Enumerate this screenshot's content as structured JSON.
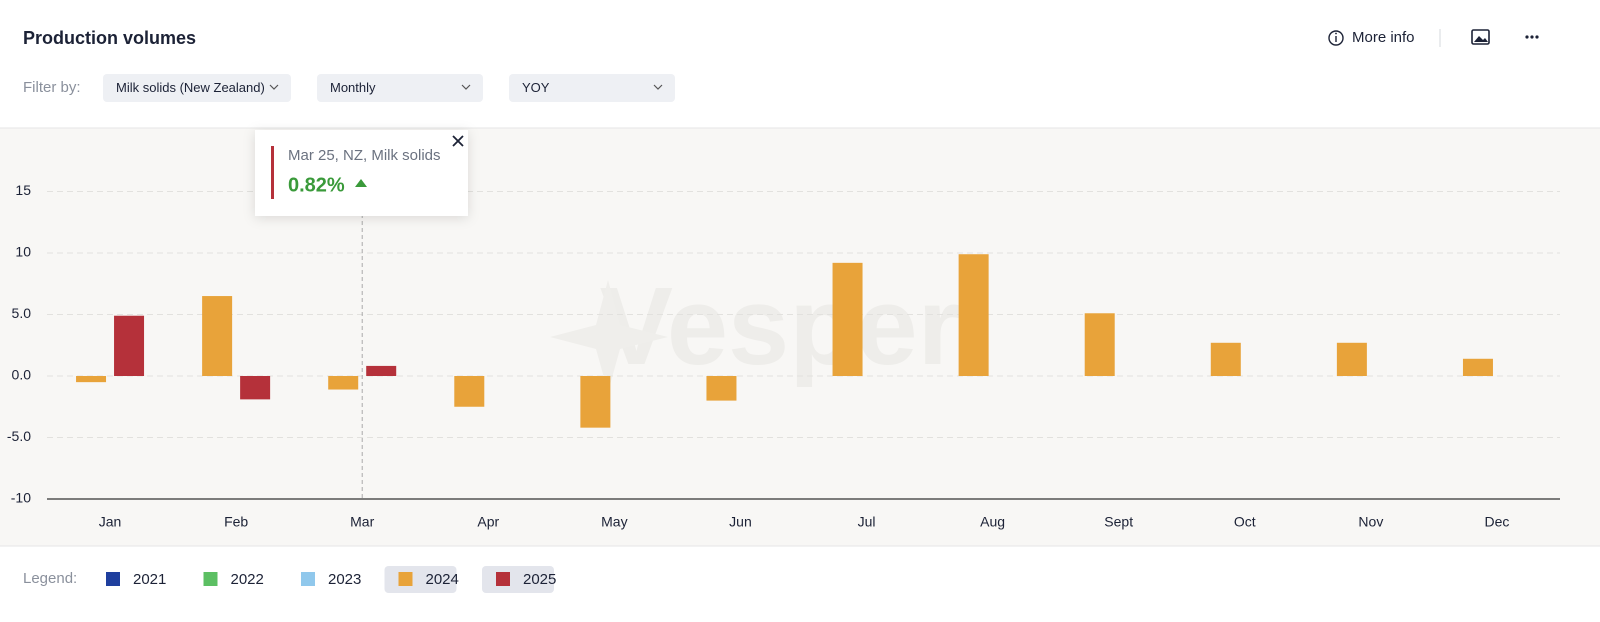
{
  "header": {
    "title": "Production volumes",
    "more_info": "More info"
  },
  "filters": {
    "label": "Filter by:",
    "options": [
      "Milk solids (New Zealand)",
      "Monthly",
      "YOY"
    ]
  },
  "chart_data": {
    "type": "bar",
    "categories": [
      "Jan",
      "Feb",
      "Mar",
      "Apr",
      "May",
      "Jun",
      "Jul",
      "Aug",
      "Sept",
      "Oct",
      "Nov",
      "Dec"
    ],
    "series": [
      {
        "name": "2021",
        "color": "#1f3f9e",
        "active": false,
        "values": [
          null,
          null,
          null,
          null,
          null,
          null,
          null,
          null,
          null,
          null,
          null,
          null
        ]
      },
      {
        "name": "2022",
        "color": "#5cbf63",
        "active": false,
        "values": [
          null,
          null,
          null,
          null,
          null,
          null,
          null,
          null,
          null,
          null,
          null,
          null
        ]
      },
      {
        "name": "2023",
        "color": "#90c8ec",
        "active": false,
        "values": [
          null,
          null,
          null,
          null,
          null,
          null,
          null,
          null,
          null,
          null,
          null,
          null
        ]
      },
      {
        "name": "2024",
        "color": "#e8a33a",
        "active": true,
        "values": [
          -0.5,
          6.5,
          -1.1,
          -2.5,
          -4.2,
          -2.0,
          9.2,
          9.9,
          5.1,
          2.7,
          2.7,
          1.4
        ]
      },
      {
        "name": "2025",
        "color": "#b5313a",
        "active": true,
        "values": [
          4.9,
          -1.9,
          0.82,
          null,
          null,
          null,
          null,
          null,
          null,
          null,
          null,
          null
        ]
      }
    ],
    "ylim": [
      -10,
      20
    ],
    "yticks": [
      -10,
      {
        "value": -5,
        "label": "-5.0"
      },
      {
        "value": 0,
        "label": "0.0"
      },
      {
        "value": 5,
        "label": "5.0"
      },
      10,
      15
    ],
    "grid": true,
    "legend_label": "Legend:",
    "watermark": "Vesper",
    "tooltip": {
      "category_index": 2,
      "series_index": 4,
      "title": "Mar 25, NZ, Milk solids",
      "value_label": "0.82%"
    }
  }
}
